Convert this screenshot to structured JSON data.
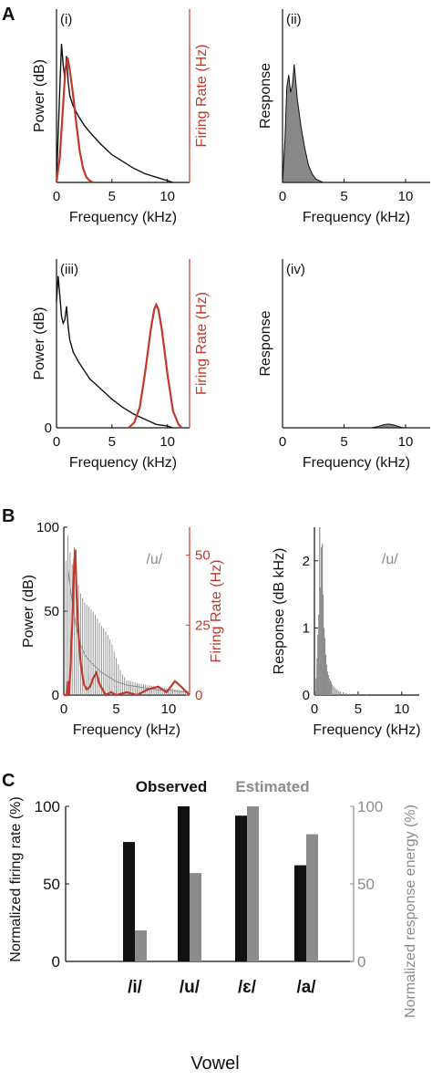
{
  "colors": {
    "black": "#111111",
    "red": "#c0392b",
    "gray": "#8c8c8c",
    "fill_gray": "#888888"
  },
  "panel_labels": {
    "A": "A",
    "B": "B",
    "C": "C"
  },
  "chart_data": [
    {
      "id": "A-i",
      "type": "line",
      "sublabel": "(i)",
      "xlabel": "Frequency (kHz)",
      "ylabel": "Power (dB)",
      "ylabel_right": "Firing Rate (Hz)",
      "xlim": [
        0,
        12
      ],
      "xticks": [
        0,
        5,
        10
      ],
      "ylim": [
        0,
        1
      ],
      "yticks": [],
      "yticks_right": [],
      "series": [
        {
          "axis": "left",
          "color": "#111111",
          "x": [
            0,
            0.15,
            0.3,
            0.45,
            0.6,
            0.75,
            0.9,
            1.05,
            1.2,
            1.5,
            2,
            2.5,
            3,
            4,
            5,
            6,
            7,
            8,
            9,
            10,
            10.5
          ],
          "y": [
            0,
            0.28,
            0.55,
            0.8,
            0.68,
            0.6,
            0.73,
            0.58,
            0.5,
            0.44,
            0.38,
            0.33,
            0.29,
            0.22,
            0.16,
            0.12,
            0.08,
            0.05,
            0.03,
            0.01,
            0.0
          ]
        },
        {
          "axis": "right",
          "color": "#c0392b",
          "x": [
            0,
            0.3,
            0.6,
            0.8,
            1.0,
            1.2,
            1.5,
            1.8,
            2.1,
            2.4,
            2.7,
            3.0,
            3.3
          ],
          "y": [
            0,
            0.15,
            0.45,
            0.65,
            0.72,
            0.65,
            0.5,
            0.33,
            0.18,
            0.08,
            0.03,
            0.01,
            0
          ]
        }
      ]
    },
    {
      "id": "A-ii",
      "type": "area",
      "sublabel": "(ii)",
      "xlabel": "Frequency (kHz)",
      "ylabel": "Response",
      "xlim": [
        0,
        12
      ],
      "xticks": [
        0,
        5,
        10
      ],
      "ylim": [
        0,
        1
      ],
      "yticks": [],
      "series": [
        {
          "color": "#888888",
          "x": [
            0,
            0.2,
            0.35,
            0.5,
            0.65,
            0.8,
            0.95,
            1.05,
            1.2,
            1.5,
            1.8,
            2.1,
            2.4,
            2.7,
            3.0,
            3.3
          ],
          "y": [
            0,
            0.25,
            0.55,
            0.62,
            0.52,
            0.56,
            0.68,
            0.6,
            0.48,
            0.32,
            0.2,
            0.1,
            0.05,
            0.02,
            0.01,
            0
          ]
        }
      ]
    },
    {
      "id": "A-iii",
      "type": "line",
      "sublabel": "(iii)",
      "xlabel": "Frequency (kHz)",
      "ylabel": "Power (dB)",
      "ylabel_right": "Firing Rate (Hz)",
      "xlim": [
        0,
        12
      ],
      "xticks": [
        0,
        5,
        10
      ],
      "ylim": [
        0,
        1
      ],
      "yticks": [
        0
      ],
      "yticks_right": [],
      "series": [
        {
          "axis": "left",
          "color": "#111111",
          "x": [
            0,
            0.15,
            0.3,
            0.45,
            0.6,
            0.75,
            0.9,
            1.05,
            1.2,
            1.5,
            2,
            2.5,
            3,
            4,
            5,
            6,
            7,
            8,
            9,
            10,
            10.5
          ],
          "y": [
            0.75,
            0.9,
            0.78,
            0.66,
            0.62,
            0.64,
            0.72,
            0.6,
            0.52,
            0.45,
            0.39,
            0.34,
            0.29,
            0.23,
            0.17,
            0.12,
            0.08,
            0.05,
            0.02,
            0.01,
            0
          ]
        },
        {
          "axis": "right",
          "color": "#c0392b",
          "x": [
            6.5,
            7.0,
            7.5,
            8.0,
            8.5,
            8.8,
            9.0,
            9.2,
            9.5,
            10.0,
            10.5,
            11.0,
            11.3
          ],
          "y": [
            0,
            0.03,
            0.12,
            0.33,
            0.58,
            0.7,
            0.73,
            0.7,
            0.58,
            0.32,
            0.1,
            0.02,
            0
          ]
        }
      ]
    },
    {
      "id": "A-iv",
      "type": "area",
      "sublabel": "(iv)",
      "xlabel": "Frequency (kHz)",
      "ylabel": "Response",
      "xlim": [
        0,
        12
      ],
      "xticks": [
        0,
        5,
        10
      ],
      "ylim": [
        0,
        1
      ],
      "yticks": [],
      "series": [
        {
          "color": "#888888",
          "x": [
            7.2,
            7.8,
            8.2,
            8.6,
            9.0,
            9.4,
            9.8
          ],
          "y": [
            0,
            0.008,
            0.018,
            0.022,
            0.018,
            0.008,
            0
          ]
        }
      ]
    },
    {
      "id": "B-left",
      "type": "line",
      "annotation": "/u/",
      "xlabel": "Frequency (kHz)",
      "ylabel": "Power (dB)",
      "ylabel_right": "Firing Rate (Hz)",
      "xlim": [
        0,
        12
      ],
      "xticks": [
        0,
        5,
        10
      ],
      "ylim": [
        0,
        100
      ],
      "yticks": [
        0,
        50,
        100
      ],
      "ylim_right": [
        0,
        60
      ],
      "yticks_right": [
        0,
        25,
        50
      ],
      "harmonic_spacing": 0.2,
      "harmonic_envelope": {
        "x": [
          0,
          0.2,
          0.4,
          0.6,
          0.8,
          1.0,
          1.2,
          1.5,
          2.0,
          2.5,
          3.0,
          3.5,
          4.0,
          4.5,
          5.0,
          5.5,
          6.0,
          7.0,
          8.0,
          9.0,
          10.0,
          11.0,
          12.0
        ],
        "y": [
          0,
          80,
          95,
          85,
          78,
          88,
          72,
          62,
          55,
          52,
          48,
          42,
          38,
          32,
          22,
          13,
          9,
          7,
          6,
          5,
          4,
          3,
          2
        ]
      },
      "smooth_envelope": {
        "x": [
          0.4,
          0.8,
          1.2,
          1.6,
          2.0,
          2.5,
          3.0,
          3.5,
          4.0,
          4.5,
          5.0,
          6.0,
          7.0,
          8.0,
          9.0,
          10.0,
          11.0,
          12.0
        ],
        "y": [
          75,
          55,
          40,
          30,
          24,
          20,
          17,
          14,
          12,
          10,
          8,
          6,
          5,
          4,
          3,
          3,
          2,
          2
        ]
      },
      "series": [
        {
          "axis": "right",
          "color": "#c0392b",
          "x": [
            0,
            0.3,
            0.4,
            0.5,
            0.6,
            0.8,
            1.0,
            1.1,
            1.2,
            1.4,
            1.6,
            1.9,
            2.2,
            2.5,
            2.8,
            3.1,
            3.4,
            3.7,
            4.0,
            4.5,
            5.0,
            6.0,
            7.0,
            8.0,
            9.0,
            9.8,
            10.6,
            11.2,
            12.0
          ],
          "y": [
            0,
            0,
            5,
            0,
            7,
            25,
            48,
            52,
            38,
            22,
            12,
            4,
            2,
            3,
            6,
            8,
            4,
            2,
            0,
            1,
            0,
            1,
            0,
            2,
            3,
            1,
            5,
            3,
            0
          ]
        }
      ]
    },
    {
      "id": "B-right",
      "type": "bar",
      "annotation": "/u/",
      "xlabel": "Frequency (kHz)",
      "ylabel": "Response (dB kHz)",
      "xlim": [
        0,
        12
      ],
      "xticks": [
        0,
        5,
        10
      ],
      "ylim": [
        0,
        2.5
      ],
      "yticks": [
        0,
        1,
        2
      ],
      "x": [
        0.1,
        0.2,
        0.3,
        0.4,
        0.5,
        0.6,
        0.7,
        0.8,
        0.9,
        1.0,
        1.1,
        1.2,
        1.3,
        1.4,
        1.5,
        1.6,
        1.7,
        1.8,
        1.9,
        2.0,
        2.2,
        2.4,
        2.6,
        2.8,
        3.0,
        3.3,
        3.6,
        4.0,
        4.5,
        5.0,
        6.0
      ],
      "values": [
        0.05,
        0.25,
        0.55,
        0.9,
        1.2,
        2.5,
        1.6,
        2.2,
        2.25,
        1.5,
        1.0,
        0.85,
        0.6,
        0.45,
        0.35,
        0.3,
        0.25,
        0.22,
        0.2,
        0.16,
        0.13,
        0.1,
        0.08,
        0.06,
        0.05,
        0.04,
        0.03,
        0.02,
        0.02,
        0.01,
        0.01
      ]
    },
    {
      "id": "C",
      "type": "bar",
      "categories": [
        "/i/",
        "/u/",
        "/ɛ/",
        "/a/"
      ],
      "xlabel": "Vowel",
      "ylabel": "Normalized firing rate (%)",
      "ylabel_right": "Normalized response energy (%)",
      "ylim": [
        0,
        100
      ],
      "yticks": [
        0,
        50,
        100
      ],
      "yticks_right": [
        0,
        50,
        100
      ],
      "legend": "top",
      "series": [
        {
          "name": "Observed",
          "color": "#111111",
          "values": [
            77,
            100,
            94,
            62
          ]
        },
        {
          "name": "Estimated",
          "color": "#8c8c8c",
          "values": [
            20,
            57,
            100,
            82
          ]
        }
      ]
    }
  ]
}
